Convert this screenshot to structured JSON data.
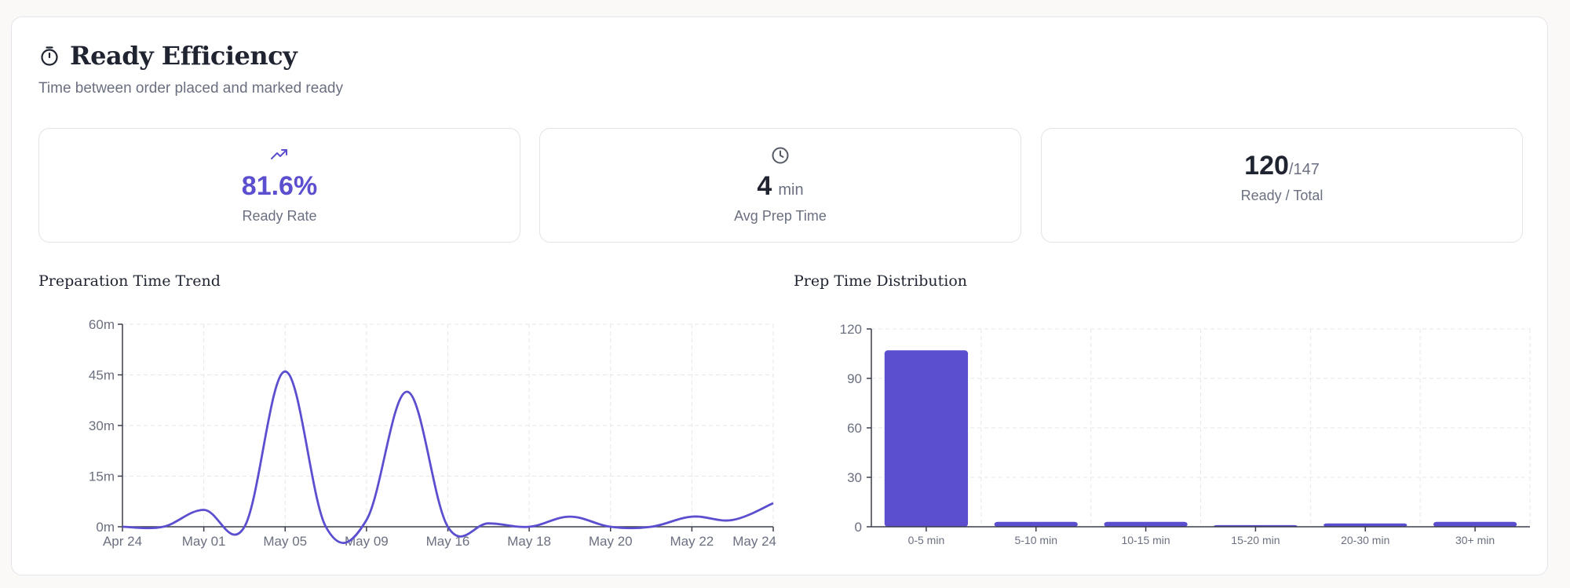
{
  "header": {
    "title": "Ready Efficiency",
    "subtitle": "Time between order placed and marked ready",
    "icon": "stopwatch-icon"
  },
  "stats": [
    {
      "icon": "trending-up-icon",
      "value": "81.6%",
      "label": "Ready Rate"
    },
    {
      "icon": "clock-icon",
      "value": "4",
      "unit": "min",
      "label": "Avg Prep Time"
    },
    {
      "value": "120",
      "denominator": "/147",
      "label": "Ready / Total"
    }
  ],
  "colors": {
    "accent": "#5b4fcf",
    "axis": "#3b3f4a",
    "grid": "#e6e7eb",
    "muted": "#6b7080"
  },
  "chart_data": [
    {
      "type": "line",
      "title": "Preparation Time Trend",
      "x": [
        "Apr 24",
        "May 01",
        "May 05",
        "May 09",
        "May 16",
        "May 18",
        "May 20",
        "May 22",
        "May 24"
      ],
      "x_ticks": [
        "Apr 24",
        "May 01",
        "May 05",
        "May 09",
        "May 16",
        "May 18",
        "May 20",
        "May 22",
        "May 24"
      ],
      "y_unit": "m",
      "ylim": [
        0,
        60
      ],
      "y_ticks": [
        "0m",
        "15m",
        "30m",
        "45m",
        "60m"
      ],
      "points": [
        {
          "x": 0,
          "y": 0
        },
        {
          "x": 0.5,
          "y": 0
        },
        {
          "x": 1,
          "y": 5
        },
        {
          "x": 1.5,
          "y": 0
        },
        {
          "x": 2,
          "y": 46
        },
        {
          "x": 2.5,
          "y": 0
        },
        {
          "x": 3,
          "y": 2
        },
        {
          "x": 3.5,
          "y": 40
        },
        {
          "x": 4,
          "y": 0
        },
        {
          "x": 4.5,
          "y": 1
        },
        {
          "x": 5,
          "y": 0
        },
        {
          "x": 5.5,
          "y": 3
        },
        {
          "x": 6,
          "y": 0
        },
        {
          "x": 6.5,
          "y": 0
        },
        {
          "x": 7,
          "y": 3
        },
        {
          "x": 7.5,
          "y": 2
        },
        {
          "x": 8,
          "y": 7
        }
      ],
      "grid": true,
      "color": "#5b4fcf"
    },
    {
      "type": "bar",
      "title": "Prep Time Distribution",
      "categories": [
        "0-5 min",
        "5-10 min",
        "10-15 min",
        "15-20 min",
        "20-30 min",
        "30+ min"
      ],
      "values": [
        107,
        3,
        3,
        1,
        2,
        3
      ],
      "ylim": [
        0,
        120
      ],
      "y_ticks": [
        "0",
        "30",
        "60",
        "90",
        "120"
      ],
      "grid": true,
      "color": "#5b4fcf"
    }
  ]
}
